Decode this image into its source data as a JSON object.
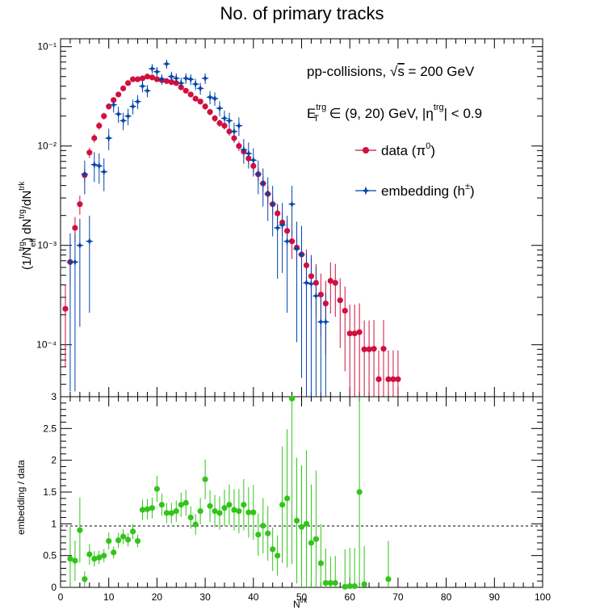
{
  "chart_data": [
    {
      "type": "scatter",
      "title": "No. of primary tracks",
      "ylabel": "(1/N_eff^trg) dN^trg/dN^trk",
      "yscale": "log",
      "xlim": [
        0,
        100
      ],
      "ylim": [
        3e-05,
        0.12
      ],
      "y_tick_labels": [
        "10⁻⁴",
        "10⁻³",
        "10⁻²",
        "10⁻¹"
      ],
      "annotations": {
        "line1": "pp-collisions, √s = 200 GeV",
        "line2": "E_T^trg ∈ (9, 20) GeV, |η^trg| < 0.9"
      },
      "legend_position": "top-right",
      "series": [
        {
          "name": "data (π⁰)",
          "color": "#d0103f",
          "marker": "circle",
          "x": [
            1,
            2,
            3,
            4,
            5,
            6,
            7,
            8,
            9,
            10,
            11,
            12,
            13,
            14,
            15,
            16,
            17,
            18,
            19,
            20,
            21,
            22,
            23,
            24,
            25,
            26,
            27,
            28,
            29,
            30,
            31,
            32,
            33,
            34,
            35,
            36,
            37,
            38,
            39,
            40,
            41,
            42,
            43,
            44,
            45,
            46,
            47,
            48,
            49,
            50,
            51,
            52,
            53,
            54,
            55,
            56,
            57,
            58,
            59,
            60,
            61,
            62,
            63,
            64,
            65,
            66,
            67,
            68,
            69,
            70
          ],
          "values": [
            0.00023,
            0.00068,
            0.0015,
            0.0026,
            0.0051,
            0.0086,
            0.012,
            0.016,
            0.02,
            0.025,
            0.029,
            0.033,
            0.038,
            0.043,
            0.047,
            0.047,
            0.048,
            0.05,
            0.049,
            0.047,
            0.046,
            0.045,
            0.044,
            0.043,
            0.039,
            0.036,
            0.033,
            0.03,
            0.028,
            0.025,
            0.022,
            0.019,
            0.017,
            0.016,
            0.014,
            0.012,
            0.01,
            0.0088,
            0.0075,
            0.0063,
            0.0052,
            0.0042,
            0.0033,
            0.0026,
            0.0021,
            0.0017,
            0.0014,
            0.0011,
            0.00095,
            0.00081,
            0.00063,
            0.00049,
            0.00042,
            0.00032,
            0.00026,
            0.00044,
            0.00042,
            0.00028,
            0.00022,
            0.00013,
            0.00013,
            0.000134,
            9e-05,
            9e-05,
            9.1e-05,
            4.5e-05,
            9.1e-05,
            4.5e-05,
            4.5e-05,
            4.5e-05
          ]
        },
        {
          "name": "embedding (h±)",
          "color": "#0044aa",
          "marker": "star",
          "x": [
            2,
            3,
            4,
            5,
            6,
            7,
            8,
            9,
            10,
            11,
            12,
            13,
            14,
            15,
            16,
            17,
            18,
            19,
            20,
            21,
            22,
            23,
            24,
            25,
            26,
            27,
            28,
            29,
            30,
            31,
            32,
            33,
            34,
            35,
            36,
            37,
            38,
            39,
            40,
            41,
            42,
            43,
            44,
            45,
            46,
            47,
            48,
            49,
            50,
            51,
            52,
            53,
            54,
            55
          ],
          "values": [
            0.00068,
            0.00068,
            0.001,
            0.0052,
            0.0011,
            0.0065,
            0.0063,
            0.0055,
            0.012,
            0.026,
            0.021,
            0.018,
            0.02,
            0.025,
            0.028,
            0.04,
            0.036,
            0.06,
            0.056,
            0.047,
            0.067,
            0.05,
            0.048,
            0.043,
            0.048,
            0.047,
            0.042,
            0.038,
            0.048,
            0.031,
            0.03,
            0.024,
            0.019,
            0.018,
            0.014,
            0.016,
            0.0092,
            0.0084,
            0.0072,
            0.0052,
            0.0042,
            0.0033,
            0.0026,
            0.0015,
            0.0016,
            0.0011,
            0.0026,
            0.00092,
            0.00081,
            0.00042,
            0.00041,
            0.00031,
            0.00017,
            0.00017
          ]
        }
      ]
    },
    {
      "type": "scatter",
      "xlabel": "N^trk",
      "ylabel": "embedding / data",
      "xlim": [
        0,
        100
      ],
      "ylim": [
        0,
        3
      ],
      "reference_line": 1,
      "series": [
        {
          "name": "",
          "color": "#33c41b",
          "marker": "circle",
          "x": [
            2,
            3,
            4,
            5,
            6,
            7,
            8,
            9,
            10,
            11,
            12,
            13,
            14,
            15,
            16,
            17,
            18,
            19,
            20,
            21,
            22,
            23,
            24,
            25,
            26,
            27,
            28,
            29,
            30,
            31,
            32,
            33,
            34,
            35,
            36,
            37,
            38,
            39,
            40,
            41,
            42,
            43,
            44,
            45,
            46,
            47,
            48,
            49,
            50,
            51,
            52,
            53,
            54,
            55,
            56,
            57,
            59,
            60,
            61,
            62,
            63,
            68
          ],
          "values": [
            0.45,
            0.42,
            0.9,
            0.13,
            0.52,
            0.45,
            0.47,
            0.5,
            0.73,
            0.55,
            0.74,
            0.8,
            0.75,
            0.88,
            0.73,
            1.22,
            1.23,
            1.25,
            1.55,
            1.3,
            1.17,
            1.17,
            1.2,
            1.3,
            1.33,
            1.1,
            0.99,
            1.2,
            1.7,
            1.28,
            1.2,
            1.17,
            1.25,
            1.3,
            1.22,
            1.2,
            1.3,
            1.18,
            1.18,
            0.83,
            0.97,
            0.85,
            0.6,
            0.5,
            1.3,
            1.4,
            2.97,
            1.05,
            0.95,
            1.0,
            0.7,
            0.76,
            0.38,
            0.07,
            0.07,
            0.07,
            0.01,
            0.02,
            0.02,
            1.5,
            0.05,
            0.13
          ]
        }
      ]
    }
  ]
}
